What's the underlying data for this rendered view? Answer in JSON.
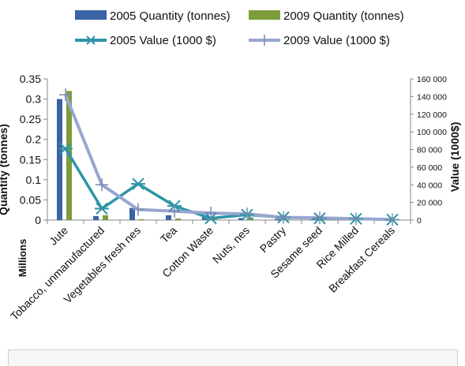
{
  "chart_data": {
    "type": "bar",
    "categories": [
      "Jute",
      "Tobacco, unmanufactured",
      "Vegetables fresh nes",
      "Tea",
      "Cotton Waste",
      "Nuts, nes",
      "Pastry",
      "Sesame seed",
      "Rice Milled",
      "Breakfast Cereals"
    ],
    "series": [
      {
        "name": "2005 Quantity (tonnes)",
        "kind": "bar",
        "axis": "left",
        "color": "#3A63A5",
        "values": [
          0.3,
          0.01,
          0.03,
          0.012,
          0.012,
          0.005,
          0.003,
          0.002,
          0.001,
          0.001
        ]
      },
      {
        "name": "2009 Quantity (tonnes)",
        "kind": "bar",
        "axis": "left",
        "color": "#7D9C3C",
        "values": [
          0.32,
          0.012,
          0.002,
          0.004,
          0.008,
          0.006,
          0.002,
          0.001,
          0.001,
          0.001
        ]
      },
      {
        "name": "2005 Value (1000 $)",
        "kind": "line",
        "axis": "right",
        "color": "#2E95A8",
        "marker": "asterisk",
        "values": [
          81000,
          13000,
          41000,
          16000,
          2000,
          6000,
          3000,
          2000,
          1500,
          500
        ]
      },
      {
        "name": "2009 Value (1000 $)",
        "kind": "line",
        "axis": "right",
        "color": "#98A6CF",
        "marker": "plus",
        "values": [
          142000,
          40000,
          12000,
          10000,
          8000,
          7000,
          3000,
          2500,
          1500,
          500
        ]
      }
    ],
    "ylabel_left": "Quantity (tonnes)",
    "ylabel_left_units": "Millions",
    "ylim_left": [
      0,
      0.35
    ],
    "yticks_left": [
      "0",
      "0.05",
      "0.1",
      "0.15",
      "0.2",
      "0.25",
      "0.3",
      "0.35"
    ],
    "ylabel_right": "Value (1000$)",
    "ylim_right": [
      0,
      160000
    ],
    "yticks_right": [
      "0",
      "20 000",
      "40 000",
      "60 000",
      "80 000",
      "100 000",
      "120 000",
      "140 000",
      "160 000"
    ],
    "legend_position": "top",
    "grid": false
  }
}
